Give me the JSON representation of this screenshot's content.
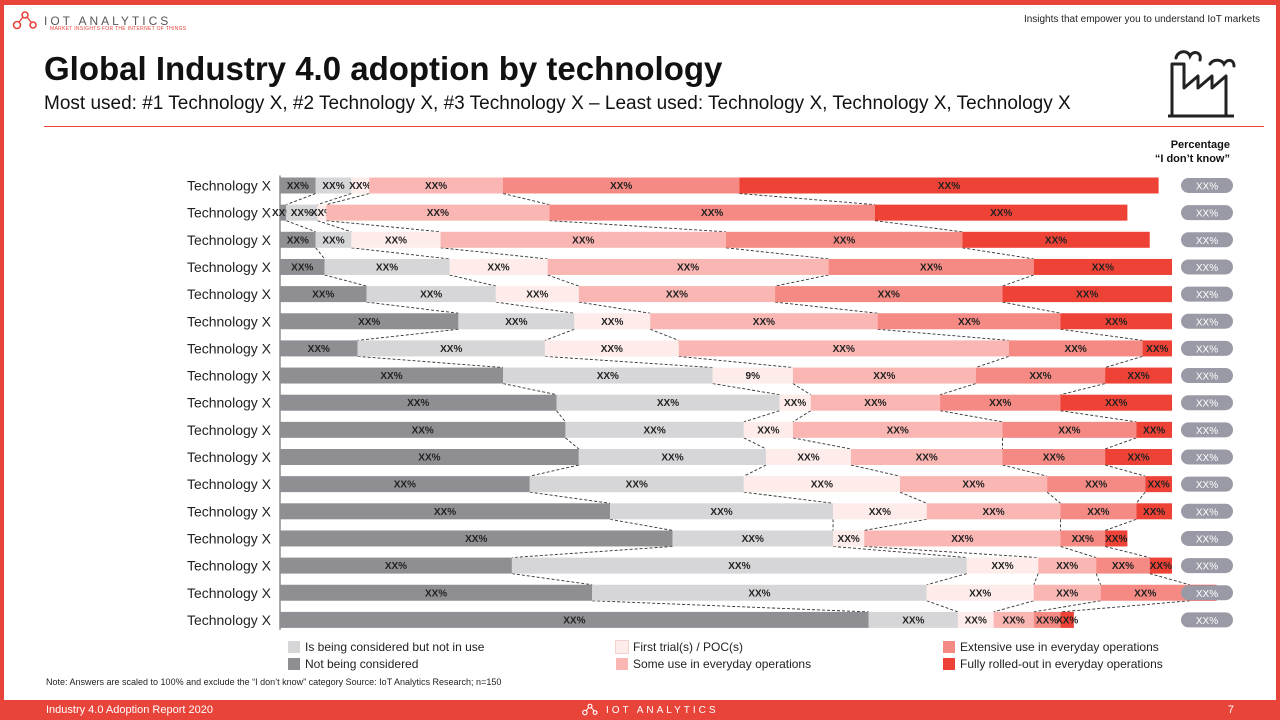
{
  "header": {
    "logo_text": "IOT ANALYTICS",
    "logo_tagline": "MARKET INSIGHTS FOR THE INTERNET OF THINGS",
    "tagline": "Insights that empower you to understand IoT markets",
    "title": "Global Industry 4.0 adoption by technology",
    "subtitle": "Most used: #1 Technology X, #2 Technology X, #3 Technology X – Least used: Technology X, Technology X, Technology X",
    "icon": "factory-icon"
  },
  "percentage_header": {
    "line1": "Percentage",
    "line2": "“I don’t know”"
  },
  "colors": {
    "not_considered": "#8f8f93",
    "considered": "#d6d6d8",
    "first_trial": "#fdecea",
    "some_use": "#f9b6b2",
    "extensive": "#f48a83",
    "fully": "#ee4236",
    "pill": "#9a9aa6",
    "accent": "#e8443a"
  },
  "legend": {
    "considered": "Is being considered but not in use",
    "not_considered": "Not being considered",
    "first_trial": "First trial(s) / POC(s)",
    "some_use": "Some use in everyday operations",
    "extensive": "Extensive use in everyday operations",
    "fully": "Fully rolled-out in everyday operations"
  },
  "chart_data": {
    "type": "bar",
    "orientation": "horizontal-stacked-100",
    "categories": [
      "Technology X",
      "Technology X",
      "Technology X",
      "Technology X",
      "Technology X",
      "Technology X",
      "Technology X",
      "Technology X",
      "Technology X",
      "Technology X",
      "Technology X",
      "Technology X",
      "Technology X",
      "Technology X",
      "Technology X",
      "Technology X",
      "Technology X"
    ],
    "series": [
      {
        "name": "Not being considered",
        "color_key": "not_considered",
        "values": [
          4.0,
          0.7,
          4.0,
          5.0,
          9.7,
          20.0,
          8.7,
          25.0,
          31.0,
          32.0,
          33.5,
          28.0,
          37.0,
          44.0,
          26.0,
          35.0,
          66.0
        ],
        "labels": [
          "XX%",
          "XX%",
          "XX%",
          "XX%",
          "XX%",
          "XX%",
          "XX%",
          "XX%",
          "XX%",
          "XX%",
          "XX%",
          "XX%",
          "XX%",
          "XX%",
          "XX%",
          "XX%",
          "XX%"
        ]
      },
      {
        "name": "Is being considered but not in use",
        "color_key": "considered",
        "values": [
          4.0,
          3.5,
          4.0,
          14.0,
          14.5,
          13.0,
          21.0,
          23.5,
          25.0,
          20.0,
          21.0,
          24.0,
          25.0,
          18.0,
          51.0,
          37.5,
          10.0
        ],
        "labels": [
          "XX%",
          "XX%",
          "XX%",
          "XX%",
          "XX%",
          "XX%",
          "XX%",
          "XX%",
          "XX%",
          "XX%",
          "XX%",
          "XX%",
          "XX%",
          "XX%",
          "XX%",
          "XX%",
          "XX%"
        ]
      },
      {
        "name": "First trial(s) / POC(s)",
        "color_key": "first_trial",
        "values": [
          2.0,
          1.0,
          10.0,
          11.0,
          9.3,
          8.5,
          15.0,
          9.0,
          3.5,
          5.5,
          9.5,
          17.5,
          10.5,
          3.5,
          8.0,
          12.0,
          4.0
        ],
        "labels": [
          "XX%",
          "XX%",
          "XX%",
          "XX%",
          "XX%",
          "XX%",
          "XX%",
          "9%",
          "XX%",
          "XX%",
          "XX%",
          "XX%",
          "XX%",
          "XX%",
          "XX%",
          "XX%",
          "XX%"
        ]
      },
      {
        "name": "Some use in everyday operations",
        "color_key": "some_use",
        "values": [
          15.0,
          25.0,
          32.0,
          31.5,
          22.0,
          25.5,
          37.0,
          20.5,
          14.5,
          23.5,
          17.0,
          16.5,
          15.0,
          22.0,
          6.5,
          7.5,
          4.5
        ],
        "labels": [
          "XX%",
          "XX%",
          "XX%",
          "XX%",
          "XX%",
          "XX%",
          "XX%",
          "XX%",
          "XX%",
          "XX%",
          "XX%",
          "XX%",
          "XX%",
          "XX%",
          "XX%",
          "XX%",
          "XX%"
        ]
      },
      {
        "name": "Extensive use in everyday operations",
        "color_key": "extensive",
        "values": [
          26.5,
          36.5,
          26.5,
          23.0,
          25.5,
          20.5,
          15.0,
          14.5,
          13.5,
          15.0,
          11.5,
          11.0,
          8.5,
          5.0,
          6.0,
          10.0,
          3.0
        ],
        "labels": [
          "XX%",
          "XX%",
          "XX%",
          "XX%",
          "XX%",
          "XX%",
          "XX%",
          "XX%",
          "XX%",
          "XX%",
          "XX%",
          "XX%",
          "XX%",
          "XX%",
          "XX%",
          "XX%",
          "XX%"
        ]
      },
      {
        "name": "Fully rolled-out in everyday operations",
        "color_key": "fully",
        "values": [
          47.0,
          28.3,
          21.0,
          15.5,
          19.0,
          12.5,
          3.3,
          7.5,
          12.5,
          4.0,
          7.5,
          3.0,
          4.0,
          2.5,
          2.5,
          3.0,
          1.5
        ],
        "labels": [
          "XX%",
          "XX%",
          "XX%",
          "XX%",
          "XX%",
          "XX%",
          "XX%",
          "XX%",
          "XX%",
          "XX%",
          "XX%",
          "XX%",
          "XX%",
          "XX%",
          "XX%",
          "XX%",
          "XX%"
        ]
      }
    ],
    "dont_know": [
      "XX%",
      "XX%",
      "XX%",
      "XX%",
      "XX%",
      "XX%",
      "XX%",
      "XX%",
      "XX%",
      "XX%",
      "XX%",
      "XX%",
      "XX%",
      "XX%",
      "XX%",
      "XX%",
      "XX%"
    ],
    "xlim": [
      0,
      100
    ],
    "connectors": "dashed"
  },
  "note": "Note: Answers are scaled to 100% and exclude the “I don’t know” category Source: IoT Analytics Research; n=150",
  "footer": {
    "left": "Industry 4.0 Adoption Report 2020",
    "center": "IOT ANALYTICS",
    "page": "7"
  }
}
